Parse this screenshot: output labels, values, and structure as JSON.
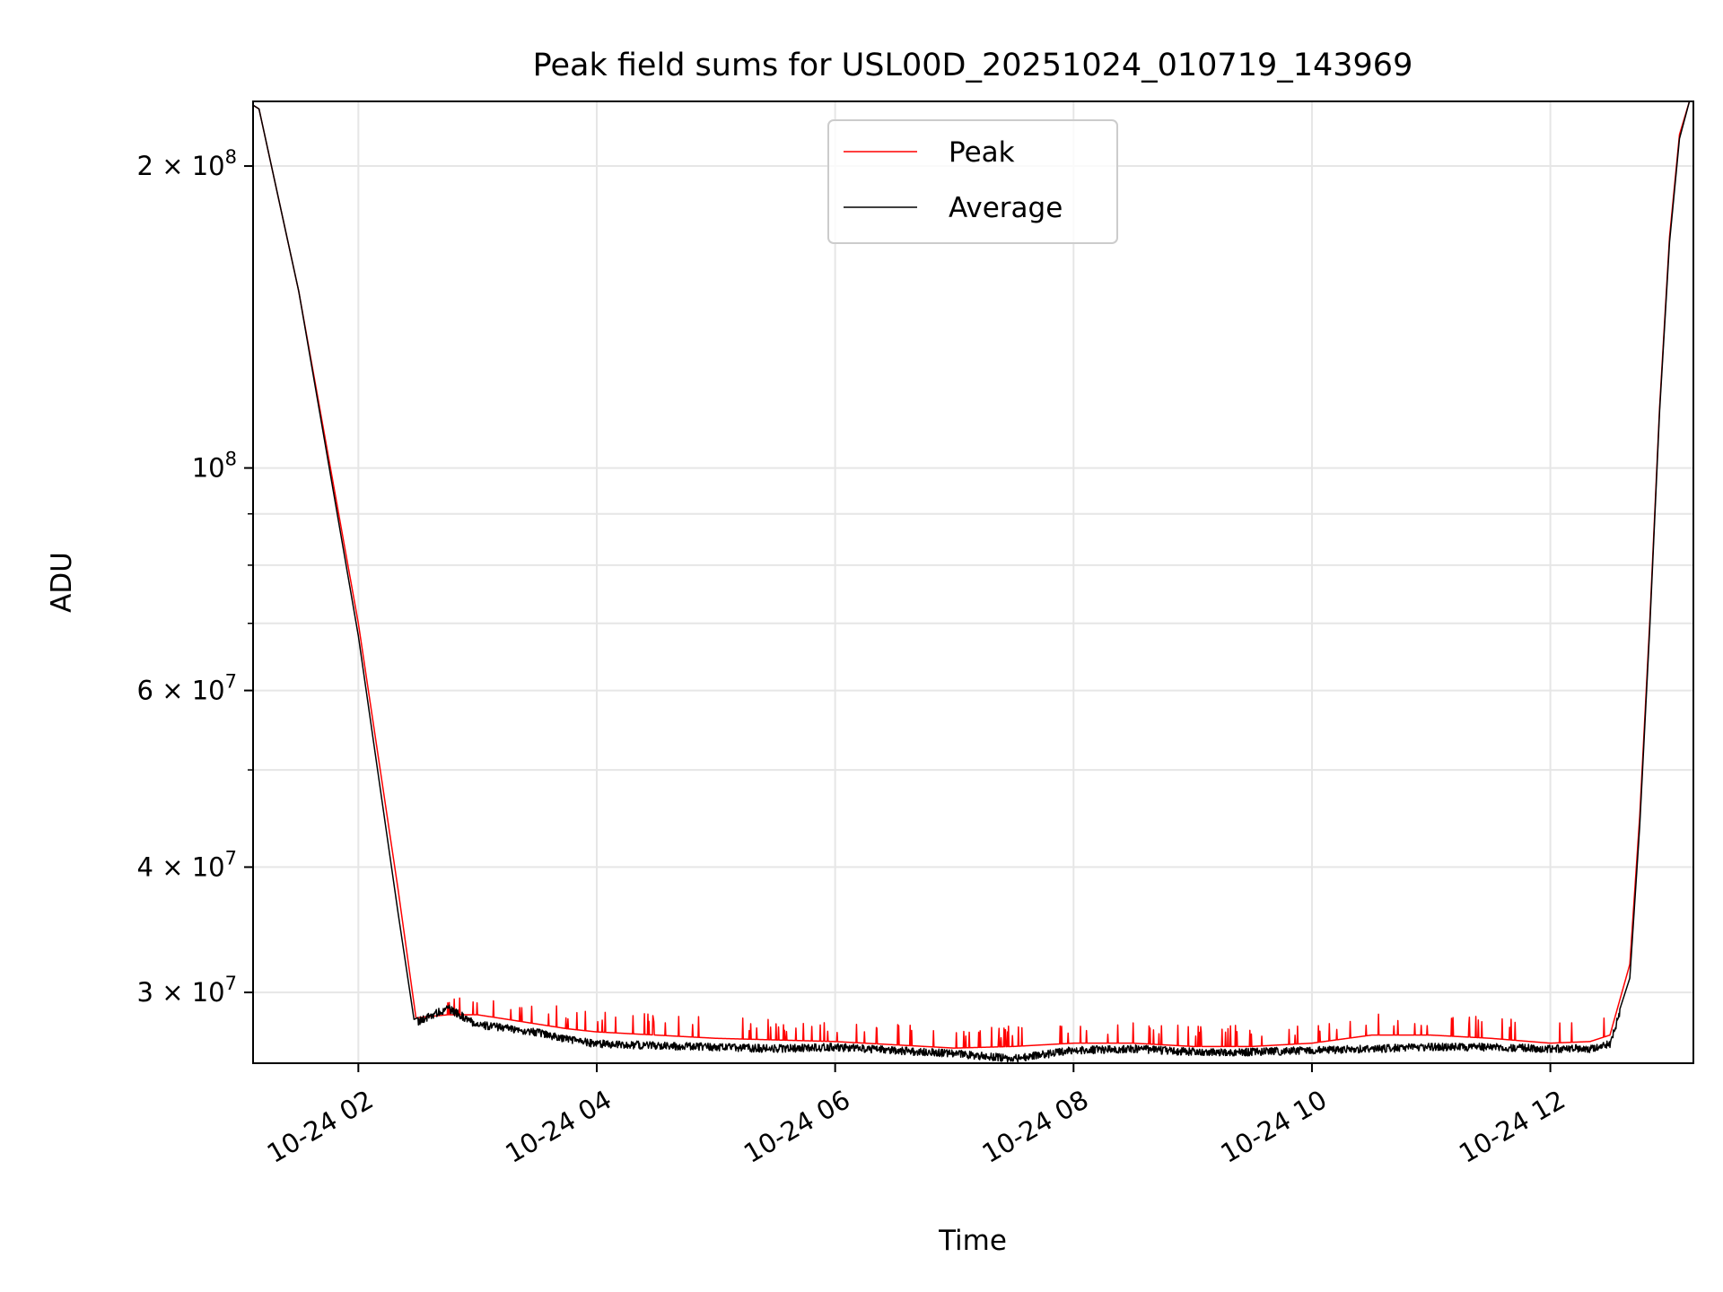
{
  "chart_data": {
    "type": "line",
    "title": "Peak field sums for USL00D_20251024_010719_143969",
    "xlabel": "Time",
    "ylabel": "ADU",
    "yscale": "log",
    "grid": true,
    "legend_position": "upper center",
    "xlim": [
      "2025-10-24 01:07",
      "2025-10-24 13:12"
    ],
    "ylim": [
      25500000,
      232000000
    ],
    "x_ticks": [
      {
        "value": "2025-10-24 02:00",
        "label": "10-24 02"
      },
      {
        "value": "2025-10-24 04:00",
        "label": "10-24 04"
      },
      {
        "value": "2025-10-24 06:00",
        "label": "10-24 06"
      },
      {
        "value": "2025-10-24 08:00",
        "label": "10-24 08"
      },
      {
        "value": "2025-10-24 10:00",
        "label": "10-24 10"
      },
      {
        "value": "2025-10-24 12:00",
        "label": "10-24 12"
      }
    ],
    "y_ticks": [
      {
        "value": 200000000,
        "base": "2 × 10",
        "exp": "8"
      },
      {
        "value": 100000000,
        "base": "10",
        "exp": "8"
      },
      {
        "value": 60000000,
        "base": "6 × 10",
        "exp": "7"
      },
      {
        "value": 40000000,
        "base": "4 × 10",
        "exp": "7"
      },
      {
        "value": 30000000,
        "base": "3 × 10",
        "exp": "7"
      }
    ],
    "y_minor_ticks": [
      90000000,
      80000000,
      70000000,
      50000000
    ],
    "series": [
      {
        "name": "Peak",
        "color": "#ff0000",
        "x": [
          "2025-10-24 01:07",
          "2025-10-24 01:10",
          "2025-10-24 01:30",
          "2025-10-24 02:00",
          "2025-10-24 02:20",
          "2025-10-24 02:29",
          "2025-10-24 02:45",
          "2025-10-24 03:00",
          "2025-10-24 03:15",
          "2025-10-24 03:30",
          "2025-10-24 03:45",
          "2025-10-24 04:00",
          "2025-10-24 04:30",
          "2025-10-24 05:00",
          "2025-10-24 05:30",
          "2025-10-24 06:00",
          "2025-10-24 06:30",
          "2025-10-24 07:00",
          "2025-10-24 07:30",
          "2025-10-24 08:00",
          "2025-10-24 08:30",
          "2025-10-24 09:00",
          "2025-10-24 09:30",
          "2025-10-24 10:00",
          "2025-10-24 10:30",
          "2025-10-24 11:00",
          "2025-10-24 11:30",
          "2025-10-24 12:00",
          "2025-10-24 12:20",
          "2025-10-24 12:30",
          "2025-10-24 12:40",
          "2025-10-24 12:45",
          "2025-10-24 12:50",
          "2025-10-24 12:55",
          "2025-10-24 13:00",
          "2025-10-24 13:05",
          "2025-10-24 13:10"
        ],
        "y": [
          230000000,
          228000000,
          150000000,
          70000000,
          38000000,
          28300000,
          28500000,
          28500000,
          28200000,
          27900000,
          27600000,
          27400000,
          27200000,
          27000000,
          26900000,
          26800000,
          26600000,
          26400000,
          26500000,
          26700000,
          26700000,
          26500000,
          26500000,
          26700000,
          27200000,
          27200000,
          27000000,
          26700000,
          26800000,
          27200000,
          32000000,
          45000000,
          70000000,
          115000000,
          170000000,
          215000000,
          232000000
        ]
      },
      {
        "name": "Average",
        "color": "#000000",
        "x": [
          "2025-10-24 01:07",
          "2025-10-24 01:10",
          "2025-10-24 01:30",
          "2025-10-24 02:00",
          "2025-10-24 02:20",
          "2025-10-24 02:28",
          "2025-10-24 02:45",
          "2025-10-24 03:00",
          "2025-10-24 03:15",
          "2025-10-24 03:30",
          "2025-10-24 03:45",
          "2025-10-24 04:00",
          "2025-10-24 04:30",
          "2025-10-24 05:00",
          "2025-10-24 05:30",
          "2025-10-24 06:00",
          "2025-10-24 06:30",
          "2025-10-24 07:00",
          "2025-10-24 07:30",
          "2025-10-24 08:00",
          "2025-10-24 08:30",
          "2025-10-24 09:00",
          "2025-10-24 09:30",
          "2025-10-24 10:00",
          "2025-10-24 10:30",
          "2025-10-24 11:00",
          "2025-10-24 11:30",
          "2025-10-24 12:00",
          "2025-10-24 12:20",
          "2025-10-24 12:30",
          "2025-10-24 12:40",
          "2025-10-24 12:45",
          "2025-10-24 12:50",
          "2025-10-24 12:55",
          "2025-10-24 13:00",
          "2025-10-24 13:05",
          "2025-10-24 13:10"
        ],
        "y": [
          230000000,
          228000000,
          150000000,
          68000000,
          36000000,
          28200000,
          29200000,
          28100000,
          27900000,
          27600000,
          27200000,
          26900000,
          26800000,
          26700000,
          26600000,
          26700000,
          26500000,
          26300000,
          26000000,
          26500000,
          26600000,
          26400000,
          26400000,
          26500000,
          26600000,
          26700000,
          26700000,
          26600000,
          26600000,
          26900000,
          31000000,
          44000000,
          69000000,
          114000000,
          168000000,
          213000000,
          232000000
        ]
      }
    ]
  }
}
